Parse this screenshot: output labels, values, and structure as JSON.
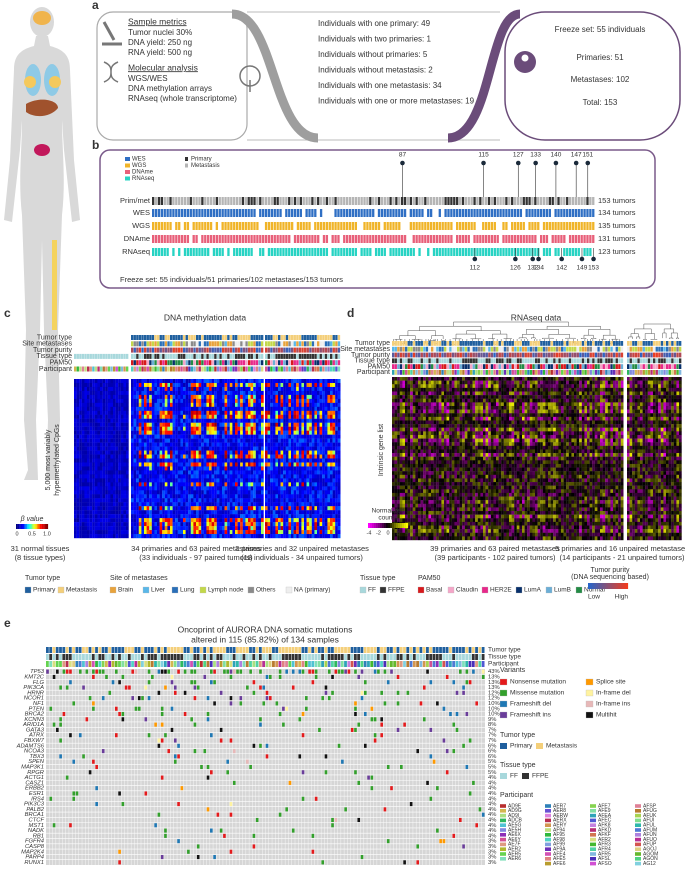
{
  "panel_labels": [
    "a",
    "b",
    "c",
    "d",
    "e"
  ],
  "a": {
    "sample_metrics_title": "Sample metrics",
    "sample_metrics": [
      "Tumor nuclei 30%",
      "DNA yield: 250 ng",
      "RNA yield: 500 ng"
    ],
    "molecular_title": "Molecular analysis",
    "molecular": [
      "WGS/WES",
      "DNA methylation arrays",
      "RNAseq (whole transcriptome)"
    ],
    "individuals": [
      "Individuals with one primary: 49",
      "Individuals with two primaries: 1",
      "Individuals without primaries: 5",
      "Individuals without metastasis: 2",
      "Individuals with one metastasis: 34",
      "Individuals with one or more metastases: 19"
    ],
    "freeze": [
      "Freeze set: 55 individuals",
      "Primaries: 51",
      "Metastases: 102",
      "Total: 153"
    ]
  },
  "b": {
    "legend_assays": [
      {
        "label": "WES",
        "color": "#2f6fc4"
      },
      {
        "label": "WGS",
        "color": "#f0b429"
      },
      {
        "label": "DNAme",
        "color": "#e8607a"
      },
      {
        "label": "RNAseq",
        "color": "#27d3c3"
      }
    ],
    "legend_types": [
      {
        "label": "Primary",
        "color": "#333333"
      },
      {
        "label": "Metastasis",
        "color": "#b5b5b5"
      }
    ],
    "rows": [
      {
        "label": "Prim/met",
        "count": "153 tumors"
      },
      {
        "label": "WES",
        "count": "134 tumors"
      },
      {
        "label": "WGS",
        "count": "135 tumors"
      },
      {
        "label": "DNAme",
        "count": "131 tumors"
      },
      {
        "label": "RNAseq",
        "count": "123 tumors"
      }
    ],
    "top_markers": [
      "87",
      "115",
      "127",
      "133",
      "140",
      "147",
      "151"
    ],
    "bottom_markers": [
      "112",
      "126",
      "132",
      "134",
      "142",
      "149",
      "153"
    ],
    "footer": "Freeze set: 55 individuals/51 primaries/102 metastases/153 tumors"
  },
  "c": {
    "title": "DNA methylation data",
    "tracks": [
      "Tumor type",
      "Site metastases",
      "Tumor purity",
      "Tissue type",
      "PAM50",
      "Participant"
    ],
    "ylabel": [
      "5,000 most variably",
      "hypermethylated CpGs"
    ],
    "scale_title": "β value",
    "scale_ticks": [
      "0",
      "0.5",
      "1.0"
    ],
    "groups": [
      [
        "31 normal tissues",
        "(8 tissue types)"
      ],
      [
        "34 primaries and 63 paired metastases",
        "(33 individuals - 97 paired tumors)"
      ],
      [
        "2 primaries and 32 unpaired metastases",
        "(18 individuals - 34 unpaired tumors)"
      ]
    ]
  },
  "d": {
    "title": "RNAseq data",
    "tracks": [
      "Tumor type",
      "Site metastases",
      "Tumor purity",
      "Tissue type",
      "PAM50",
      "Participant"
    ],
    "ylabel": "Intrinsic gene list",
    "scale_title": [
      "Normalized",
      "counts"
    ],
    "scale_ticks": [
      "-4",
      "-2",
      "0",
      "2",
      "4"
    ],
    "groups": [
      [
        "39 primaries and 63 paired metastases",
        "(39 participants - 102 paired tumors)"
      ],
      [
        "5 primaries and 16 unpaired metastases",
        "(14 participants - 21 unpaired tumors)"
      ]
    ]
  },
  "legend": {
    "tumor_type": {
      "title": "Tumor type",
      "items": [
        {
          "label": "Primary",
          "color": "#1f5f9e"
        },
        {
          "label": "Metastasis",
          "color": "#f4cf7a"
        }
      ]
    },
    "site": {
      "title": "Site of metastases",
      "items": [
        {
          "label": "Brain",
          "color": "#e8a33c"
        },
        {
          "label": "Liver",
          "color": "#5ab7e8"
        },
        {
          "label": "Lung",
          "color": "#2a6fb8"
        },
        {
          "label": "Lymph node",
          "color": "#c3d84a"
        },
        {
          "label": "Others",
          "color": "#8a8a8a"
        },
        {
          "label": "NA (primary)",
          "color": "#eeeeee"
        }
      ]
    },
    "tissue": {
      "title": "Tissue type",
      "items": [
        {
          "label": "FF",
          "color": "#a8d8dc"
        },
        {
          "label": "FFPE",
          "color": "#333333"
        }
      ]
    },
    "pam50": {
      "title": "PAM50",
      "items": [
        {
          "label": "Basal",
          "color": "#d7191c"
        },
        {
          "label": "Claudin",
          "color": "#f4a6c8"
        },
        {
          "label": "HER2E",
          "color": "#e7298a"
        },
        {
          "label": "LumA",
          "color": "#08306b"
        },
        {
          "label": "LumB",
          "color": "#6baed6"
        },
        {
          "label": "Normal",
          "color": "#238b45"
        }
      ]
    },
    "purity": {
      "title": [
        "Tumor purity",
        "(DNA sequencing based)"
      ],
      "low": "Low",
      "high": "High"
    }
  },
  "e": {
    "title": [
      "Oncoprint of AURORA DNA somatic mutations",
      "altered in 115 (85.82%) of 134 samples"
    ],
    "tracks": [
      "Tumor type",
      "Tissue type",
      "Participant"
    ],
    "genes": [
      {
        "name": "TP53",
        "pct": "43%"
      },
      {
        "name": "KMT2C",
        "pct": "13%"
      },
      {
        "name": "FLG",
        "pct": "13%"
      },
      {
        "name": "PIK3CA",
        "pct": "13%"
      },
      {
        "name": "HRNR",
        "pct": "12%"
      },
      {
        "name": "NCOR1",
        "pct": "12%"
      },
      {
        "name": "NF1",
        "pct": "10%"
      },
      {
        "name": "PTEN",
        "pct": "10%"
      },
      {
        "name": "BRCA2",
        "pct": "10%"
      },
      {
        "name": "KCNN3",
        "pct": "9%"
      },
      {
        "name": "ARID1A",
        "pct": "8%"
      },
      {
        "name": "GATA3",
        "pct": "7%"
      },
      {
        "name": "ATRX",
        "pct": "7%"
      },
      {
        "name": "FBXW7",
        "pct": "7%"
      },
      {
        "name": "ADAMTS6",
        "pct": "6%"
      },
      {
        "name": "NCOA3",
        "pct": "6%"
      },
      {
        "name": "TBX3",
        "pct": "6%"
      },
      {
        "name": "SPEN",
        "pct": "5%"
      },
      {
        "name": "MAP3K1",
        "pct": "5%"
      },
      {
        "name": "RPGR",
        "pct": "5%"
      },
      {
        "name": "ACTG1",
        "pct": "4%"
      },
      {
        "name": "CASZ1",
        "pct": "4%"
      },
      {
        "name": "ERBB2",
        "pct": "4%"
      },
      {
        "name": "ESR1",
        "pct": "4%"
      },
      {
        "name": "IRS4",
        "pct": "4%"
      },
      {
        "name": "PIK3C3",
        "pct": "4%"
      },
      {
        "name": "PALB2",
        "pct": "4%"
      },
      {
        "name": "BRCA1",
        "pct": "4%"
      },
      {
        "name": "CTCF",
        "pct": "4%"
      },
      {
        "name": "MST1",
        "pct": "4%"
      },
      {
        "name": "NADK",
        "pct": "4%"
      },
      {
        "name": "RB1",
        "pct": "4%"
      },
      {
        "name": "FGFR4",
        "pct": "3%"
      },
      {
        "name": "CASP8",
        "pct": "3%"
      },
      {
        "name": "MAP2K4",
        "pct": "3%"
      },
      {
        "name": "PARP4",
        "pct": "3%"
      },
      {
        "name": "RUNX1",
        "pct": "3%"
      }
    ],
    "variants_title": "Variants",
    "variants": [
      {
        "label": "Nonsense mutation",
        "color": "#e41a1c"
      },
      {
        "label": "Splice site",
        "color": "#ff9900"
      },
      {
        "label": "Missense mutation",
        "color": "#33a02c"
      },
      {
        "label": "In-frame del",
        "color": "#fff3a0"
      },
      {
        "label": "Frameshift del",
        "color": "#1f78b4"
      },
      {
        "label": "In-frame ins",
        "color": "#e7b8b8"
      },
      {
        "label": "Frameshift ins",
        "color": "#6a3d9a"
      },
      {
        "label": "Multihit",
        "color": "#111111"
      }
    ],
    "tumor_type_title": "Tumor type",
    "tumor_type": [
      {
        "label": "Primary",
        "color": "#1f5f9e"
      },
      {
        "label": "Metastasis",
        "color": "#f4cf7a"
      }
    ],
    "tissue_title": "Tissue type",
    "tissue": [
      {
        "label": "FF",
        "color": "#a8d8dc"
      },
      {
        "label": "FFPE",
        "color": "#333333"
      }
    ],
    "participant_title": "Participant",
    "participants": [
      "AD9E",
      "AD9G",
      "AD9I",
      "ADCB",
      "AE5G",
      "AE5H",
      "AE6X",
      "AE6Y",
      "AE7F",
      "AER2",
      "AER5",
      "AER6",
      "AER7",
      "AER8",
      "AERW",
      "AERX",
      "AERY",
      "AF94",
      "AF95",
      "AF98",
      "AF99",
      "AF9A",
      "AFE4",
      "AFE5",
      "AFE6",
      "AFE7",
      "AFE9",
      "AFEA",
      "AFEC",
      "AFK8",
      "AFKD",
      "AFKF",
      "AFR2",
      "AFR3",
      "AFR4",
      "AFR5",
      "AFSL",
      "AFSO",
      "AFSP",
      "AFUG",
      "AFUK",
      "AFUI",
      "AFUL",
      "AFUM",
      "AFUN",
      "AFUO",
      "AFUP",
      "AGOJ",
      "AGOM",
      "AGON",
      "AG12"
    ]
  }
}
